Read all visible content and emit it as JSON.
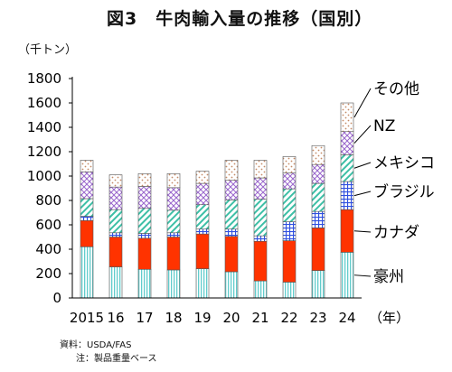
{
  "title": "図3　牛肉輸入量の推移（国別）",
  "unit_label": "（千トン）",
  "source_note": "資料：USDA/FAS",
  "basis_note": "注：製品重量ベース",
  "chart_data": {
    "type": "bar",
    "stacked": true,
    "title": "図3　牛肉輸入量の推移（国別）",
    "ylabel": "（千トン）",
    "xlabel": "（年）",
    "ylim": [
      0,
      1800
    ],
    "yticks": [
      0,
      200,
      400,
      600,
      800,
      1000,
      1200,
      1400,
      1600,
      1800
    ],
    "categories": [
      "2015",
      "16",
      "17",
      "18",
      "19",
      "20",
      "21",
      "22",
      "23",
      "24"
    ],
    "series": [
      {
        "name": "豪州",
        "color": "#7fd8d8",
        "pattern": "vlines",
        "values": [
          420,
          255,
          235,
          230,
          240,
          215,
          140,
          130,
          225,
          375
        ]
      },
      {
        "name": "カナダ",
        "color": "#ff3300",
        "pattern": "solid",
        "values": [
          215,
          245,
          255,
          270,
          285,
          290,
          325,
          340,
          350,
          350
        ]
      },
      {
        "name": "ブラジル",
        "color": "#2f4fdf",
        "pattern": "grid",
        "values": [
          35,
          35,
          40,
          35,
          40,
          60,
          45,
          155,
          135,
          230
        ]
      },
      {
        "name": "メキシコ",
        "color": "#3dbfa6",
        "pattern": "hatch",
        "values": [
          145,
          190,
          205,
          185,
          200,
          240,
          300,
          270,
          230,
          220
        ]
      },
      {
        "name": "NZ",
        "color": "#9966cc",
        "pattern": "crosshatch",
        "values": [
          220,
          185,
          180,
          185,
          175,
          160,
          175,
          130,
          155,
          190
        ]
      },
      {
        "name": "その他",
        "color": "#c58a66",
        "pattern": "dots",
        "values": [
          95,
          100,
          105,
          115,
          100,
          165,
          145,
          135,
          155,
          235
        ]
      }
    ]
  }
}
